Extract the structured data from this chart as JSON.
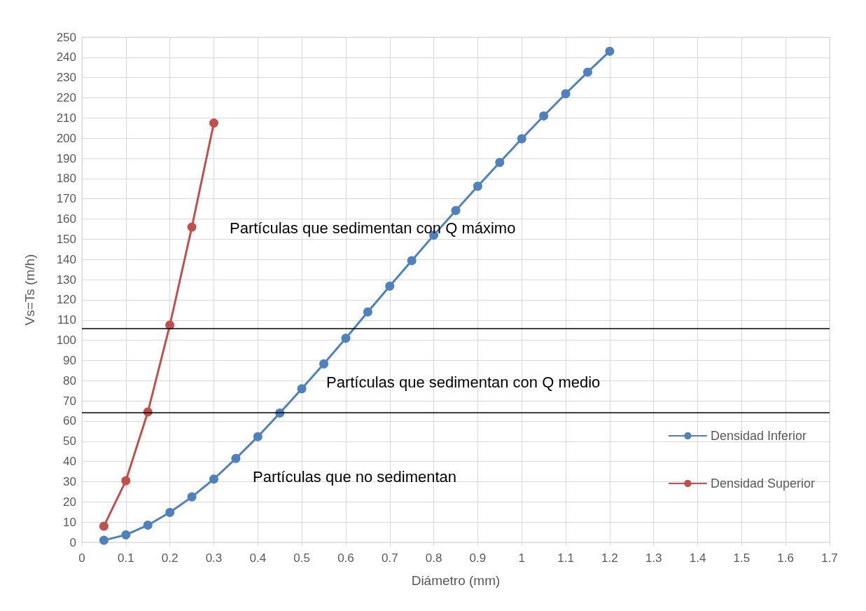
{
  "chart_data": {
    "type": "line",
    "xlabel": "Diámetro (mm)",
    "ylabel": "Vs=Ts (m/h)",
    "xlim": [
      0,
      1.7
    ],
    "xticks": [
      0,
      0.1,
      0.2,
      0.3,
      0.4,
      0.5,
      0.6,
      0.7,
      0.8,
      0.9,
      1,
      1.1,
      1.2,
      1.3,
      1.4,
      1.5,
      1.6,
      1.7
    ],
    "ylim": [
      0,
      250
    ],
    "yticks": [
      0,
      10,
      20,
      30,
      40,
      50,
      60,
      70,
      80,
      90,
      100,
      110,
      120,
      130,
      140,
      150,
      160,
      170,
      180,
      190,
      200,
      210,
      220,
      230,
      240,
      250
    ],
    "grid": true,
    "legend": "right",
    "marker": "circle",
    "line_style": "solid",
    "series": [
      {
        "name": "Densidad Inferior",
        "color": "#4f81bd",
        "x": [
          0.05,
          0.1,
          0.15,
          0.2,
          0.25,
          0.3,
          0.35,
          0.4,
          0.45,
          0.5,
          0.55,
          0.6,
          0.65,
          0.7,
          0.75,
          0.8,
          0.85,
          0.9,
          0.95,
          1,
          1.05,
          1.1,
          1.15,
          1.2
        ],
        "values": [
          1,
          3.7,
          8.5,
          14.8,
          22.5,
          31.3,
          41.5,
          52.3,
          64,
          76,
          88.3,
          101,
          114,
          126.8,
          139.4,
          152,
          164.2,
          176.2,
          188,
          199.7,
          211,
          222,
          232.7,
          243
        ]
      },
      {
        "name": "Densidad Superior",
        "color": "#c0504d",
        "x": [
          0.05,
          0.1,
          0.15,
          0.2,
          0.25,
          0.3
        ],
        "values": [
          8,
          30.5,
          64.5,
          107.5,
          156,
          207.5
        ]
      }
    ],
    "ref_lines": [
      {
        "axis": "y",
        "value": 105.8,
        "color": "#000000"
      },
      {
        "axis": "y",
        "value": 64.4,
        "color": "#000000"
      }
    ],
    "annotations": [
      "Partículas que sedimentan con Q máximo",
      "Partículas que sedimentan con Q medio",
      "Partículas que no sedimentan"
    ]
  }
}
